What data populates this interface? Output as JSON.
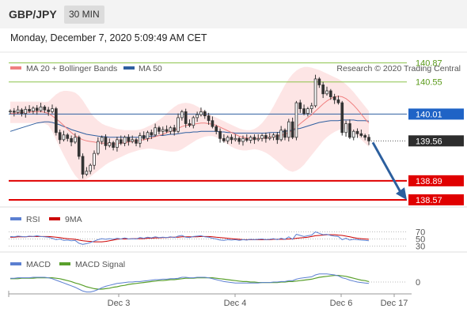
{
  "header": {
    "symbol": "GBP/JPY",
    "timeframe": "30 MIN",
    "datetime": "Monday, December 7, 2020 5:09:49 AM CET"
  },
  "legend": {
    "ma20_bb": "MA 20 + Bollinger Bands",
    "ma50": "MA 50",
    "credit": "Research © 2020 Trading Central",
    "rsi": "RSI",
    "rsi_ma": "9MA",
    "macd": "MACD",
    "macd_signal": "MACD Signal"
  },
  "colors": {
    "ma20": "#f08080",
    "bb_fill": "#fde0e0",
    "ma50": "#2f5fa0",
    "resistance": "#8bc34a",
    "pivot": "#2f5fa0",
    "support": "#e00000",
    "arrow": "#2c5f9e",
    "rsi": "#5b7fd1",
    "rsi_ma": "#cc0000",
    "macd": "#5b7fd1",
    "macd_signal": "#5aa02c"
  },
  "chart_data": [
    {
      "type": "candlestick",
      "x_ticks": [
        "Dec 3",
        "Dec 4",
        "Dec 6",
        "Dec 17"
      ],
      "ylim": [
        138.45,
        141.05
      ],
      "levels": [
        {
          "value": 140.87,
          "label": "140.87",
          "kind": "resistance"
        },
        {
          "value": 140.55,
          "label": "140.55",
          "kind": "resistance"
        },
        {
          "value": 140.01,
          "label": "140.01",
          "kind": "pivot"
        },
        {
          "value": 139.56,
          "label": "139.56",
          "kind": "last"
        },
        {
          "value": 138.89,
          "label": "138.89",
          "kind": "support"
        },
        {
          "value": 138.57,
          "label": "138.57",
          "kind": "support"
        }
      ],
      "close_series": [
        140.06,
        140.04,
        140.08,
        140.02,
        140.09,
        140.06,
        140.11,
        140.07,
        140.13,
        140.08,
        140.05,
        140.1,
        139.7,
        139.58,
        139.66,
        139.6,
        139.54,
        139.62,
        139.3,
        139.0,
        139.05,
        139.15,
        139.35,
        139.55,
        139.62,
        139.48,
        139.53,
        139.45,
        139.58,
        139.52,
        139.62,
        139.55,
        139.58,
        139.52,
        139.65,
        139.6,
        139.7,
        139.66,
        139.78,
        139.72,
        139.75,
        139.72,
        139.78,
        139.72,
        139.95,
        140.05,
        139.85,
        139.82,
        139.95,
        140.0,
        140.05,
        139.98,
        139.9,
        139.8,
        139.72,
        139.6,
        139.56,
        139.62,
        139.58,
        139.6,
        139.55,
        139.6,
        139.57,
        139.62,
        139.58,
        139.6,
        139.65,
        139.6,
        139.62,
        139.66,
        139.58,
        139.74,
        139.62,
        139.88,
        139.62,
        140.2,
        140.1,
        140.02,
        140.1,
        140.15,
        140.6,
        140.5,
        140.35,
        140.4,
        140.3,
        140.25,
        140.2,
        139.7,
        139.85,
        139.62,
        139.72,
        139.68,
        139.65,
        139.62,
        139.56
      ],
      "ma20_series": [
        140.02,
        140.02,
        140.03,
        140.03,
        140.04,
        140.04,
        140.05,
        140.05,
        140.05,
        140.04,
        140.02,
        139.98,
        139.93,
        139.88,
        139.82,
        139.76,
        139.7,
        139.65,
        139.61,
        139.58,
        139.56,
        139.55,
        139.54,
        139.53,
        139.52,
        139.52,
        139.51,
        139.51,
        139.51,
        139.52,
        139.53,
        139.54,
        139.55,
        139.56,
        139.57,
        139.58,
        139.59,
        139.61,
        139.63,
        139.65,
        139.67,
        139.7,
        139.72,
        139.74,
        139.77,
        139.8,
        139.82,
        139.83,
        139.84,
        139.85,
        139.86,
        139.86,
        139.85,
        139.84,
        139.82,
        139.79,
        139.76,
        139.73,
        139.7,
        139.67,
        139.64,
        139.62,
        139.61,
        139.6,
        139.6,
        139.6,
        139.61,
        139.61,
        139.62,
        139.63,
        139.64,
        139.65,
        139.67,
        139.7,
        139.74,
        139.79,
        139.85,
        139.9,
        139.95,
        140.0,
        140.06,
        140.12,
        140.18,
        140.23,
        140.27,
        140.3,
        140.31,
        140.3,
        140.27,
        140.22,
        140.16,
        140.09,
        140.01,
        139.93,
        139.86
      ],
      "bb_upper": [
        140.22,
        140.22,
        140.22,
        140.22,
        140.22,
        140.22,
        140.22,
        140.22,
        140.22,
        140.21,
        140.22,
        140.28,
        140.34,
        140.38,
        140.4,
        140.4,
        140.39,
        140.37,
        140.32,
        140.24,
        140.14,
        140.04,
        139.96,
        139.9,
        139.85,
        139.82,
        139.8,
        139.78,
        139.76,
        139.75,
        139.74,
        139.74,
        139.74,
        139.74,
        139.75,
        139.77,
        139.8,
        139.83,
        139.87,
        139.91,
        139.96,
        140.02,
        140.08,
        140.13,
        140.17,
        140.19,
        140.2,
        140.19,
        140.17,
        140.14,
        140.1,
        140.06,
        140.02,
        139.98,
        139.95,
        139.92,
        139.89,
        139.86,
        139.83,
        139.8,
        139.77,
        139.75,
        139.74,
        139.74,
        139.76,
        139.8,
        139.86,
        139.94,
        140.03,
        140.14,
        140.26,
        140.38,
        140.5,
        140.6,
        140.68,
        140.74,
        140.78,
        140.8,
        140.8,
        140.79,
        140.77,
        140.75,
        140.72,
        140.69,
        140.66,
        140.63,
        140.6,
        140.56,
        140.51,
        140.45,
        140.38,
        140.3,
        140.22,
        140.14,
        140.06
      ],
      "bb_lower": [
        139.86,
        139.86,
        139.86,
        139.86,
        139.86,
        139.86,
        139.86,
        139.86,
        139.86,
        139.85,
        139.82,
        139.72,
        139.58,
        139.45,
        139.32,
        139.2,
        139.08,
        138.98,
        138.91,
        138.9,
        138.92,
        138.96,
        139.01,
        139.06,
        139.11,
        139.16,
        139.2,
        139.23,
        139.26,
        139.29,
        139.32,
        139.35,
        139.37,
        139.39,
        139.41,
        139.42,
        139.43,
        139.43,
        139.42,
        139.41,
        139.4,
        139.39,
        139.38,
        139.38,
        139.39,
        139.42,
        139.46,
        139.5,
        139.54,
        139.58,
        139.61,
        139.63,
        139.64,
        139.64,
        139.62,
        139.58,
        139.54,
        139.5,
        139.46,
        139.43,
        139.41,
        139.4,
        139.4,
        139.41,
        139.42,
        139.41,
        139.39,
        139.36,
        139.32,
        139.27,
        139.22,
        139.16,
        139.1,
        139.06,
        139.04,
        139.06,
        139.1,
        139.16,
        139.24,
        139.32,
        139.4,
        139.48,
        139.56,
        139.62,
        139.67,
        139.71,
        139.74,
        139.76,
        139.76,
        139.74,
        139.7,
        139.64,
        139.58,
        139.52,
        139.46
      ],
      "ma50_series": [
        139.72,
        139.74,
        139.76,
        139.78,
        139.8,
        139.82,
        139.84,
        139.86,
        139.87,
        139.88,
        139.88,
        139.87,
        139.85,
        139.83,
        139.8,
        139.78,
        139.75,
        139.73,
        139.71,
        139.69,
        139.67,
        139.66,
        139.65,
        139.64,
        139.63,
        139.63,
        139.62,
        139.62,
        139.62,
        139.62,
        139.62,
        139.62,
        139.62,
        139.62,
        139.62,
        139.63,
        139.63,
        139.64,
        139.64,
        139.65,
        139.65,
        139.66,
        139.67,
        139.67,
        139.68,
        139.69,
        139.7,
        139.7,
        139.71,
        139.71,
        139.72,
        139.72,
        139.72,
        139.72,
        139.72,
        139.71,
        139.71,
        139.7,
        139.7,
        139.69,
        139.69,
        139.69,
        139.69,
        139.69,
        139.69,
        139.69,
        139.69,
        139.69,
        139.7,
        139.7,
        139.7,
        139.71,
        139.72,
        139.73,
        139.74,
        139.76,
        139.77,
        139.79,
        139.81,
        139.83,
        139.85,
        139.87,
        139.88,
        139.89,
        139.9,
        139.9,
        139.9,
        139.91,
        139.91,
        139.91,
        139.91,
        139.9,
        139.9,
        139.9,
        139.89
      ]
    },
    {
      "type": "line",
      "name": "RSI",
      "levels": [
        70,
        50,
        30
      ],
      "ylim": [
        20,
        80
      ],
      "series": [
        {
          "name": "RSI",
          "values": [
            57,
            56,
            58,
            57,
            56,
            58,
            57,
            59,
            57,
            56,
            55,
            52,
            48,
            50,
            46,
            47,
            45,
            46,
            38,
            35,
            37,
            40,
            44,
            48,
            51,
            49,
            51,
            49,
            52,
            50,
            53,
            50,
            51,
            50,
            54,
            52,
            55,
            53,
            56,
            54,
            55,
            54,
            56,
            54,
            58,
            60,
            55,
            54,
            57,
            58,
            59,
            56,
            55,
            52,
            50,
            47,
            46,
            48,
            47,
            48,
            46,
            48,
            47,
            49,
            48,
            49,
            50,
            48,
            49,
            51,
            48,
            52,
            49,
            56,
            49,
            63,
            60,
            57,
            59,
            61,
            70,
            66,
            62,
            63,
            60,
            58,
            57,
            48,
            52,
            47,
            49,
            48,
            47,
            46,
            45
          ]
        },
        {
          "name": "9MA",
          "values": [
            55,
            55,
            56,
            56,
            56,
            57,
            57,
            57,
            57,
            57,
            57,
            56,
            55,
            54,
            52,
            51,
            50,
            49,
            47,
            45,
            44,
            43,
            42,
            42,
            42,
            43,
            45,
            47,
            49,
            50,
            50,
            50,
            51,
            51,
            51,
            51,
            52,
            52,
            53,
            53,
            54,
            54,
            55,
            55,
            55,
            56,
            56,
            56,
            56,
            56,
            57,
            57,
            57,
            56,
            55,
            54,
            53,
            52,
            51,
            50,
            49,
            48,
            48,
            48,
            48,
            48,
            48,
            48,
            48,
            49,
            49,
            49,
            49,
            50,
            50,
            52,
            53,
            54,
            55,
            57,
            59,
            60,
            61,
            62,
            62,
            62,
            61,
            60,
            58,
            56,
            54,
            52,
            51,
            50,
            49
          ]
        }
      ]
    },
    {
      "type": "line",
      "name": "MACD",
      "levels": [
        0
      ],
      "series": [
        {
          "name": "MACD",
          "values": [
            0.08,
            0.08,
            0.09,
            0.09,
            0.09,
            0.09,
            0.1,
            0.1,
            0.1,
            0.1,
            0.09,
            0.07,
            0.04,
            0.01,
            -0.02,
            -0.05,
            -0.08,
            -0.11,
            -0.15,
            -0.19,
            -0.21,
            -0.21,
            -0.19,
            -0.16,
            -0.12,
            -0.09,
            -0.07,
            -0.05,
            -0.03,
            -0.02,
            -0.01,
            0.0,
            0.0,
            0.01,
            0.01,
            0.02,
            0.03,
            0.04,
            0.05,
            0.05,
            0.06,
            0.06,
            0.07,
            0.07,
            0.08,
            0.1,
            0.1,
            0.09,
            0.09,
            0.1,
            0.1,
            0.1,
            0.09,
            0.07,
            0.05,
            0.03,
            0.01,
            0.0,
            -0.01,
            -0.02,
            -0.02,
            -0.02,
            -0.02,
            -0.02,
            -0.02,
            -0.02,
            -0.01,
            -0.01,
            -0.01,
            0.0,
            0.0,
            0.01,
            0.01,
            0.03,
            0.03,
            0.06,
            0.08,
            0.09,
            0.1,
            0.11,
            0.15,
            0.17,
            0.17,
            0.17,
            0.16,
            0.15,
            0.13,
            0.09,
            0.07,
            0.04,
            0.02,
            0.0,
            -0.01,
            -0.02,
            -0.03
          ]
        },
        {
          "name": "MACD Signal",
          "values": [
            0.07,
            0.07,
            0.07,
            0.08,
            0.08,
            0.08,
            0.08,
            0.09,
            0.09,
            0.09,
            0.09,
            0.09,
            0.08,
            0.07,
            0.05,
            0.03,
            0.01,
            -0.02,
            -0.04,
            -0.07,
            -0.1,
            -0.12,
            -0.14,
            -0.15,
            -0.15,
            -0.14,
            -0.13,
            -0.11,
            -0.1,
            -0.08,
            -0.07,
            -0.05,
            -0.04,
            -0.03,
            -0.02,
            -0.01,
            0.0,
            0.01,
            0.02,
            0.03,
            0.03,
            0.04,
            0.05,
            0.05,
            0.06,
            0.07,
            0.08,
            0.08,
            0.08,
            0.09,
            0.09,
            0.09,
            0.09,
            0.09,
            0.08,
            0.07,
            0.06,
            0.05,
            0.04,
            0.03,
            0.02,
            0.01,
            0.01,
            0.0,
            0.0,
            -0.01,
            -0.01,
            -0.01,
            -0.01,
            -0.01,
            -0.01,
            0.0,
            0.0,
            0.01,
            0.01,
            0.02,
            0.03,
            0.04,
            0.05,
            0.06,
            0.08,
            0.1,
            0.11,
            0.12,
            0.13,
            0.14,
            0.14,
            0.13,
            0.12,
            0.1,
            0.08,
            0.06,
            0.04,
            0.03,
            0.01
          ]
        }
      ]
    }
  ]
}
